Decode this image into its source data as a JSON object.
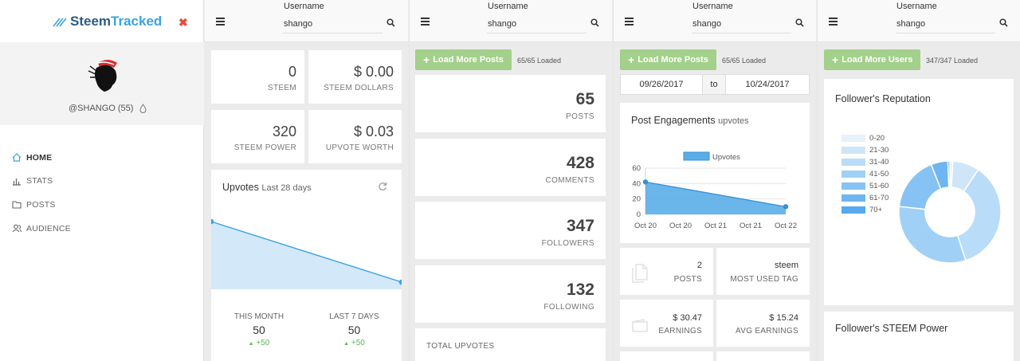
{
  "sidebar": {
    "logo_a": "Steem",
    "logo_b": "Tracked",
    "close": "✖",
    "handle": "@SHANGO (55)",
    "nav": [
      {
        "label": "HOME",
        "icon": "home-icon"
      },
      {
        "label": "STATS",
        "icon": "bar-chart-icon"
      },
      {
        "label": "POSTS",
        "icon": "folder-icon"
      },
      {
        "label": "AUDIENCE",
        "icon": "users-icon"
      }
    ]
  },
  "search": {
    "label": "Username",
    "value": "shango"
  },
  "home": {
    "steem": "0",
    "steem_label": "STEEM",
    "sbd": "$ 0.00",
    "sbd_label": "STEEM DOLLARS",
    "sp": "320",
    "sp_label": "STEEM POWER",
    "upvote_worth": "$ 0.03",
    "upvote_worth_label": "UPVOTE WORTH",
    "upvotes_title": "Upvotes",
    "upvotes_sub": "Last 28 days",
    "this_month_label": "THIS MONTH",
    "this_month": "50",
    "this_month_delta": "+50",
    "last7_label": "LAST 7 DAYS",
    "last7": "50",
    "last7_delta": "+50",
    "sparkline": [
      1.0,
      0.0
    ]
  },
  "stats": {
    "load_btn": "Load More Posts",
    "loaded": "65/65 Loaded",
    "items": [
      {
        "value": "65",
        "label": "POSTS"
      },
      {
        "value": "428",
        "label": "COMMENTS"
      },
      {
        "value": "347",
        "label": "FOLLOWERS"
      },
      {
        "value": "132",
        "label": "FOLLOWING"
      }
    ],
    "total_upvotes_label": "TOTAL UPVOTES"
  },
  "posts": {
    "load_btn": "Load More Posts",
    "loaded": "65/65 Loaded",
    "date_from": "09/26/2017",
    "date_to_label": "to",
    "date_to": "10/24/2017",
    "engagement_title": "Post Engagements",
    "engagement_sub": "upvotes",
    "posts_count": "2",
    "posts_label": "POSTS",
    "tag": "steem",
    "tag_label": "MOST USED TAG",
    "earnings": "$ 30.47",
    "earnings_label": "EARNINGS",
    "avg": "$ 15.24",
    "avg_label": "AVG EARNINGS"
  },
  "audience": {
    "load_btn": "Load More Users",
    "loaded": "347/347 Loaded",
    "rep_title": "Follower's Reputation",
    "sp_title": "Follower's STEEM Power"
  },
  "chart_data": [
    {
      "type": "area",
      "title": "Post Engagements",
      "x": [
        "Oct 20",
        "Oct 20",
        "Oct 21",
        "Oct 21",
        "Oct 22"
      ],
      "series": [
        {
          "name": "Upvotes",
          "points": [
            [
              0,
              42
            ],
            [
              1,
              10
            ]
          ]
        }
      ],
      "ylim": [
        0,
        60
      ],
      "yticks": [
        "60",
        "40",
        "20",
        "0"
      ],
      "color": "#5aaee8",
      "legend": "top"
    },
    {
      "type": "pie",
      "title": "Follower's Reputation",
      "categories": [
        "0-20",
        "21-30",
        "31-40",
        "41-50",
        "51-60",
        "61-70",
        "70+"
      ],
      "values": [
        3,
        27,
        113,
        101,
        55,
        17,
        2
      ],
      "colors": [
        "#e6f1fb",
        "#cfe6f9",
        "#b9dcf8",
        "#a0d0f6",
        "#86c2f3",
        "#6db6f1",
        "#55a9ee"
      ],
      "legend": "left"
    }
  ]
}
